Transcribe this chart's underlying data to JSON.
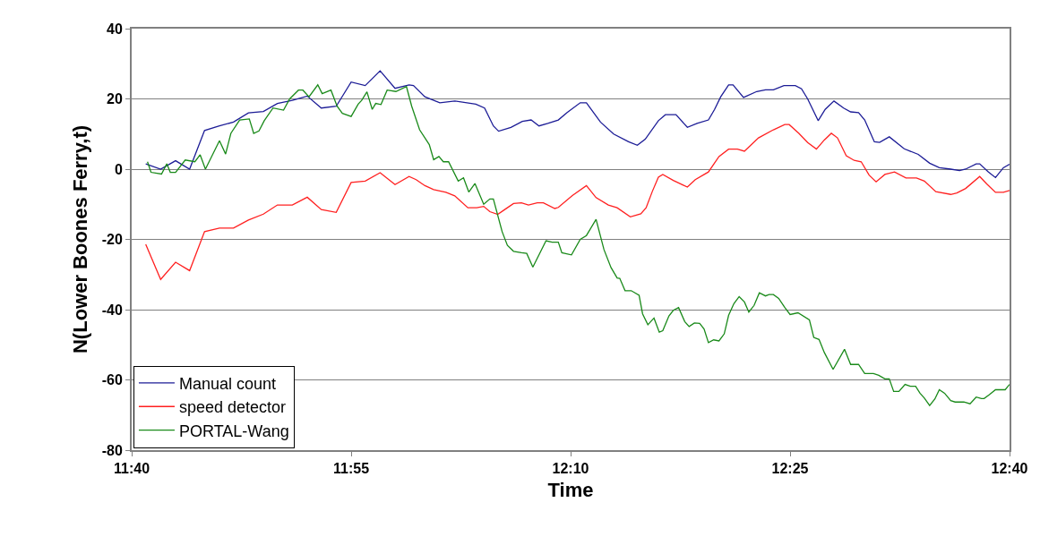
{
  "chart_data": {
    "type": "line",
    "xlabel": "Time",
    "ylabel": "N(Lower Boones Ferry,t)",
    "xlim": [
      11.667,
      12.667
    ],
    "xticks": [
      {
        "value": 11.667,
        "label": "11:40"
      },
      {
        "value": 11.917,
        "label": "11:55"
      },
      {
        "value": 12.167,
        "label": "12:10"
      },
      {
        "value": 12.417,
        "label": "12:25"
      },
      {
        "value": 12.667,
        "label": "12:40"
      }
    ],
    "ylim": [
      -80,
      40
    ],
    "yticks": [
      -80,
      -60,
      -40,
      -20,
      0,
      20,
      40
    ],
    "grid": "y",
    "legend": "bottom left",
    "marker": "none",
    "line_style": "solid",
    "series": [
      {
        "name": "Manual count",
        "color": "#1c1c96",
        "x": [
          11.683,
          11.7,
          11.717,
          11.733,
          11.75,
          11.767,
          11.783,
          11.8,
          11.817,
          11.833,
          11.85,
          11.867,
          11.883,
          11.9,
          11.917,
          11.933,
          11.95,
          11.967,
          11.983,
          11.988,
          12.001,
          12.018,
          12.035,
          12.059,
          12.069,
          12.079,
          12.085,
          12.099,
          12.112,
          12.122,
          12.131,
          12.141,
          12.153,
          12.163,
          12.178,
          12.185,
          12.201,
          12.216,
          12.233,
          12.243,
          12.252,
          12.267,
          12.275,
          12.287,
          12.3,
          12.311,
          12.324,
          12.331,
          12.338,
          12.347,
          12.352,
          12.364,
          12.379,
          12.389,
          12.398,
          12.41,
          12.423,
          12.43,
          12.437,
          12.449,
          12.457,
          12.467,
          12.478,
          12.486,
          12.495,
          12.502,
          12.513,
          12.519,
          12.53,
          12.547,
          12.563,
          12.576,
          12.587,
          12.6,
          12.61,
          12.617,
          12.629,
          12.633,
          12.643,
          12.651,
          12.66,
          12.667
        ],
        "values": [
          1.5,
          0,
          2.4,
          0,
          11,
          12.3,
          13.4,
          16,
          16.4,
          18.7,
          19.6,
          20.8,
          17.4,
          17.9,
          24.8,
          23.8,
          28,
          23,
          24,
          23.8,
          20.6,
          18.9,
          19.4,
          18.5,
          17.4,
          12.3,
          10.8,
          11.9,
          13.6,
          14,
          12.3,
          13,
          14,
          16.1,
          18.9,
          18.9,
          13.4,
          10,
          7.8,
          6.8,
          8.5,
          13.8,
          15.5,
          15.5,
          11.9,
          13,
          14,
          17,
          20.6,
          24,
          24,
          20.4,
          22.1,
          22.6,
          22.6,
          23.8,
          23.8,
          22.9,
          20,
          13.8,
          17,
          19.4,
          17.4,
          16.3,
          16.1,
          14,
          7.8,
          7.6,
          9.2,
          5.8,
          4.2,
          1.7,
          0.4,
          0,
          -0.4,
          0,
          1.5,
          1.5,
          -0.8,
          -2.4,
          0.4,
          1.4
        ]
      },
      {
        "name": "speed detector",
        "color": "#ff2020",
        "x": [
          11.683,
          11.7,
          11.717,
          11.733,
          11.75,
          11.767,
          11.783,
          11.8,
          11.817,
          11.833,
          11.85,
          11.867,
          11.883,
          11.9,
          11.917,
          11.933,
          11.95,
          11.967,
          11.983,
          11.991,
          12.001,
          12.011,
          12.025,
          12.035,
          12.05,
          12.06,
          12.068,
          12.075,
          12.084,
          12.092,
          12.102,
          12.111,
          12.119,
          12.129,
          12.136,
          12.149,
          12.153,
          12.169,
          12.185,
          12.196,
          12.21,
          12.22,
          12.235,
          12.247,
          12.253,
          12.26,
          12.267,
          12.272,
          12.284,
          12.3,
          12.309,
          12.324,
          12.336,
          12.347,
          12.357,
          12.365,
          12.381,
          12.398,
          12.411,
          12.416,
          12.427,
          12.437,
          12.447,
          12.456,
          12.464,
          12.471,
          12.481,
          12.49,
          12.498,
          12.507,
          12.515,
          12.525,
          12.536,
          12.549,
          12.561,
          12.57,
          12.583,
          12.6,
          12.607,
          12.617,
          12.633,
          12.641,
          12.651,
          12.66,
          12.667
        ],
        "values": [
          -21.4,
          -31.4,
          -26.5,
          -28.9,
          -17.8,
          -16.8,
          -16.8,
          -14.5,
          -12.8,
          -10.2,
          -10.2,
          -8,
          -11.5,
          -12.3,
          -3.8,
          -3.4,
          -1,
          -4.4,
          -2.1,
          -3,
          -4.7,
          -5.8,
          -6.6,
          -7.6,
          -11,
          -11,
          -10.6,
          -12.1,
          -12.9,
          -11.5,
          -9.8,
          -9.6,
          -10.2,
          -9.6,
          -9.6,
          -11.2,
          -10.9,
          -7.5,
          -4.7,
          -8.1,
          -10.2,
          -11,
          -13.6,
          -12.7,
          -11,
          -6.4,
          -2.3,
          -1.5,
          -3.2,
          -5.1,
          -3,
          -0.8,
          3.6,
          5.7,
          5.7,
          5.1,
          8.9,
          11.2,
          12.7,
          12.7,
          10.2,
          7.6,
          5.7,
          8.3,
          10.2,
          8.9,
          3.8,
          2.5,
          2.1,
          -1.7,
          -3.6,
          -1.5,
          -0.8,
          -2.5,
          -2.5,
          -3.4,
          -6.4,
          -7.2,
          -6.8,
          -5.5,
          -2.1,
          -4.2,
          -6.6,
          -6.6,
          -6.1
        ]
      },
      {
        "name": "PORTAL-Wang",
        "color": "#1a8a1a",
        "x": [
          11.685,
          11.689,
          11.701,
          11.707,
          11.711,
          11.717,
          11.728,
          11.739,
          11.745,
          11.751,
          11.767,
          11.774,
          11.78,
          11.79,
          11.801,
          11.806,
          11.812,
          11.818,
          11.828,
          11.84,
          11.847,
          11.857,
          11.862,
          11.869,
          11.879,
          11.884,
          11.894,
          11.901,
          11.907,
          11.917,
          11.925,
          11.929,
          11.935,
          11.941,
          11.945,
          11.951,
          11.958,
          11.968,
          11.98,
          11.986,
          11.995,
          12.006,
          12.011,
          12.017,
          12.022,
          12.028,
          12.039,
          12.045,
          12.051,
          12.058,
          12.068,
          12.075,
          12.079,
          12.089,
          12.095,
          12.102,
          12.111,
          12.117,
          12.124,
          12.139,
          12.146,
          12.153,
          12.157,
          12.168,
          12.178,
          12.185,
          12.196,
          12.205,
          12.213,
          12.22,
          12.223,
          12.229,
          12.236,
          12.245,
          12.249,
          12.255,
          12.262,
          12.268,
          12.272,
          12.279,
          12.284,
          12.29,
          12.297,
          12.302,
          12.308,
          12.314,
          12.319,
          12.324,
          12.33,
          12.336,
          12.342,
          12.347,
          12.353,
          12.359,
          12.365,
          12.37,
          12.376,
          12.382,
          12.389,
          12.393,
          12.398,
          12.404,
          12.411,
          12.417,
          12.426,
          12.439,
          12.444,
          12.45,
          12.456,
          12.466,
          12.479,
          12.486,
          12.495,
          12.502,
          12.512,
          12.518,
          12.525,
          12.53,
          12.535,
          12.541,
          12.548,
          12.554,
          12.56,
          12.565,
          12.57,
          12.576,
          12.582,
          12.587,
          12.593,
          12.6,
          12.605,
          12.615,
          12.622,
          12.629,
          12.635,
          12.638,
          12.644,
          12.651,
          12.662,
          12.667
        ],
        "values": [
          2.1,
          -0.9,
          -1.4,
          1.5,
          -0.9,
          -0.9,
          2.6,
          2.1,
          4.1,
          0,
          8.1,
          4.3,
          10.2,
          14,
          14.3,
          10.2,
          10.9,
          13.8,
          17.4,
          16.8,
          20,
          22.5,
          22.5,
          20.6,
          24,
          21.5,
          22.5,
          17.9,
          15.9,
          15,
          18.5,
          19.6,
          22,
          17,
          18.7,
          18.4,
          22.5,
          22.1,
          23.5,
          17.9,
          11.2,
          7,
          2.7,
          3.6,
          2.1,
          2.1,
          -3.4,
          -2.5,
          -6.5,
          -4.1,
          -10,
          -8.5,
          -8.5,
          -17.8,
          -21.7,
          -23.4,
          -23.8,
          -24,
          -27.9,
          -20.4,
          -20.8,
          -20.8,
          -23.8,
          -24.4,
          -20,
          -18.9,
          -14.3,
          -22.9,
          -28,
          -31,
          -31.1,
          -34.6,
          -34.6,
          -35.9,
          -41.2,
          -44.3,
          -42.4,
          -46.4,
          -46,
          -41.8,
          -40.2,
          -39.4,
          -43.4,
          -44.8,
          -43.8,
          -43.9,
          -45.5,
          -49.4,
          -48.6,
          -48.9,
          -46.9,
          -41.6,
          -38.3,
          -36.3,
          -37.8,
          -40.7,
          -38.8,
          -35.2,
          -36.1,
          -35.7,
          -35.7,
          -36.8,
          -39.4,
          -41.4,
          -40.9,
          -42.9,
          -47.9,
          -48.5,
          -52.2,
          -57,
          -51.3,
          -55.6,
          -55.6,
          -58.2,
          -58.2,
          -58.7,
          -59.7,
          -59.7,
          -63.3,
          -63.3,
          -61.3,
          -61.8,
          -61.8,
          -63.8,
          -65.2,
          -67.3,
          -65.4,
          -62.8,
          -63.8,
          -65.9,
          -66.3,
          -66.3,
          -66.8,
          -64.9,
          -65.3,
          -65.3,
          -64.2,
          -62.8,
          -62.8,
          -61.3
        ]
      }
    ]
  }
}
